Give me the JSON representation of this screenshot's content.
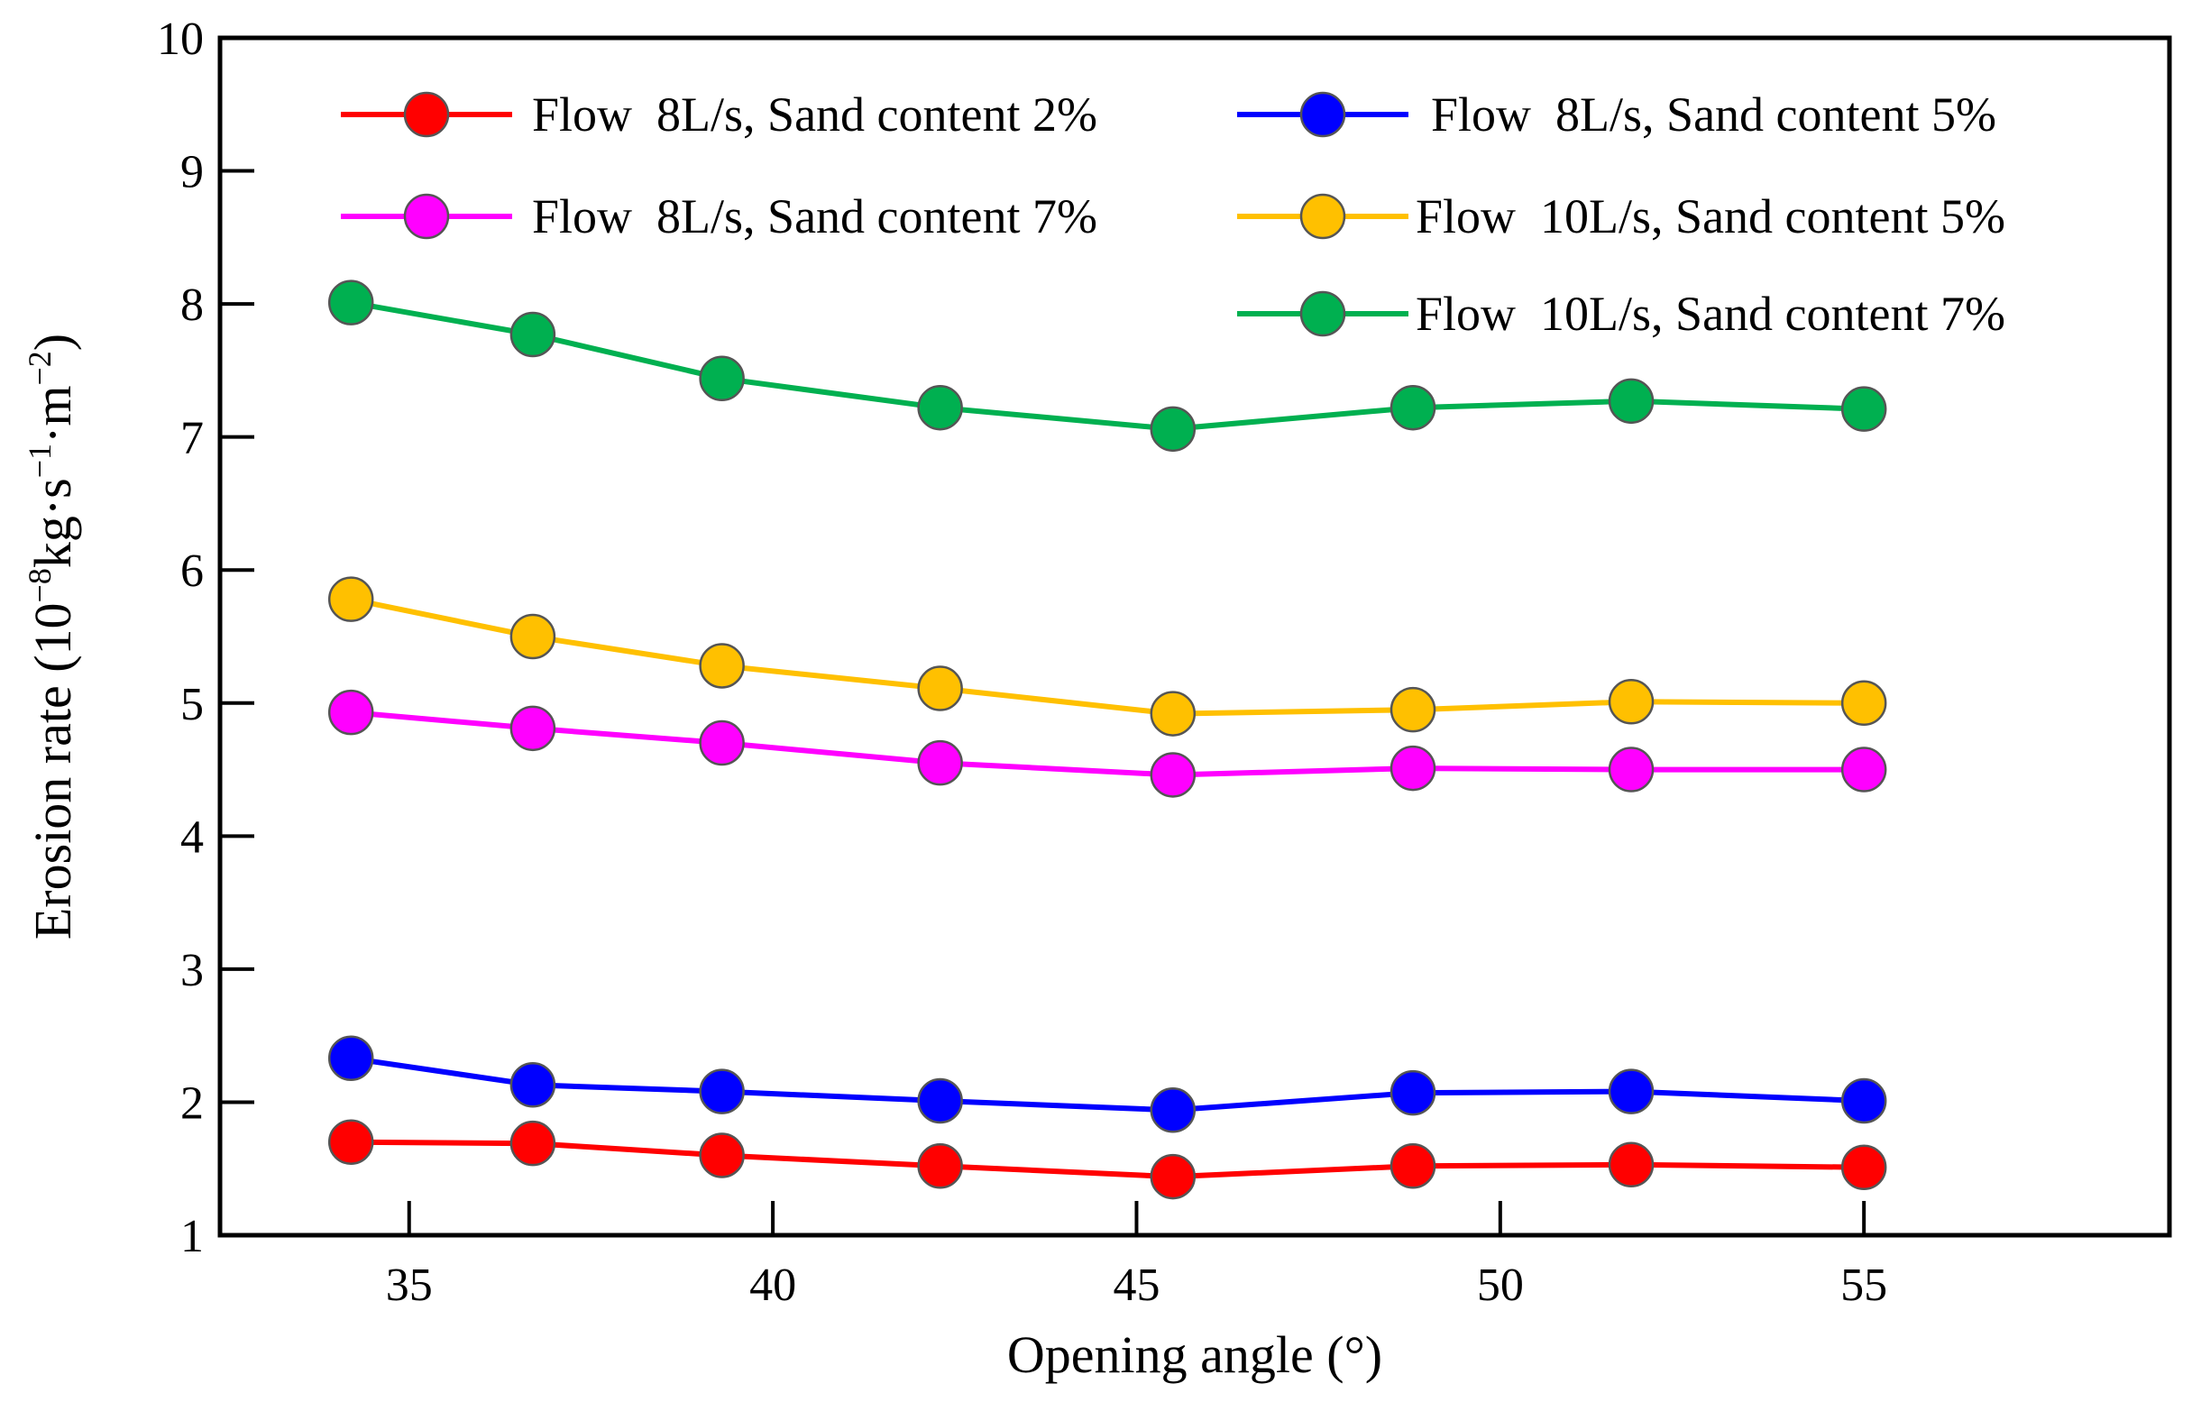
{
  "chart_data": {
    "type": "line",
    "title": "",
    "xlabel": "Opening angle (°)",
    "ylabel": {
      "prefix": "Erosion rate (",
      "mantissa": "10",
      "exp1": "−8",
      "unit1": "kg·s",
      "exp2": "−1",
      "unit2": "·m",
      "exp3": "−2",
      "suffix": ")"
    },
    "xlim": [
      32.4,
      59.2
    ],
    "ylim": [
      1,
      10
    ],
    "xticks": [
      35,
      40,
      45,
      50,
      55
    ],
    "yticks": [
      1,
      2,
      3,
      4,
      5,
      6,
      7,
      8,
      9,
      10
    ],
    "x": [
      34.2,
      36.7,
      39.3,
      42.3,
      45.5,
      48.8,
      51.8,
      55.0
    ],
    "legend_position": "top",
    "series": [
      {
        "name": "Flow  8L/s, Sand content 2%",
        "color": "#ff0000",
        "values": [
          1.7,
          1.69,
          1.6,
          1.52,
          1.44,
          1.52,
          1.53,
          1.51
        ]
      },
      {
        "name": "Flow  8L/s, Sand content 5%",
        "color": "#0000ff",
        "values": [
          2.33,
          2.13,
          2.08,
          2.01,
          1.94,
          2.07,
          2.08,
          2.01
        ]
      },
      {
        "name": "Flow  8L/s, Sand content 7%",
        "color": "#ff00ff",
        "values": [
          4.93,
          4.81,
          4.7,
          4.55,
          4.46,
          4.51,
          4.5,
          4.5
        ]
      },
      {
        "name": "Flow  10L/s, Sand content 5%",
        "color": "#ffc000",
        "values": [
          5.78,
          5.5,
          5.28,
          5.11,
          4.92,
          4.95,
          5.01,
          5.0
        ]
      },
      {
        "name": "Flow  10L/s, Sand content 7%",
        "color": "#00b050",
        "values": [
          8.01,
          7.77,
          7.44,
          7.22,
          7.06,
          7.22,
          7.27,
          7.21
        ]
      }
    ]
  }
}
